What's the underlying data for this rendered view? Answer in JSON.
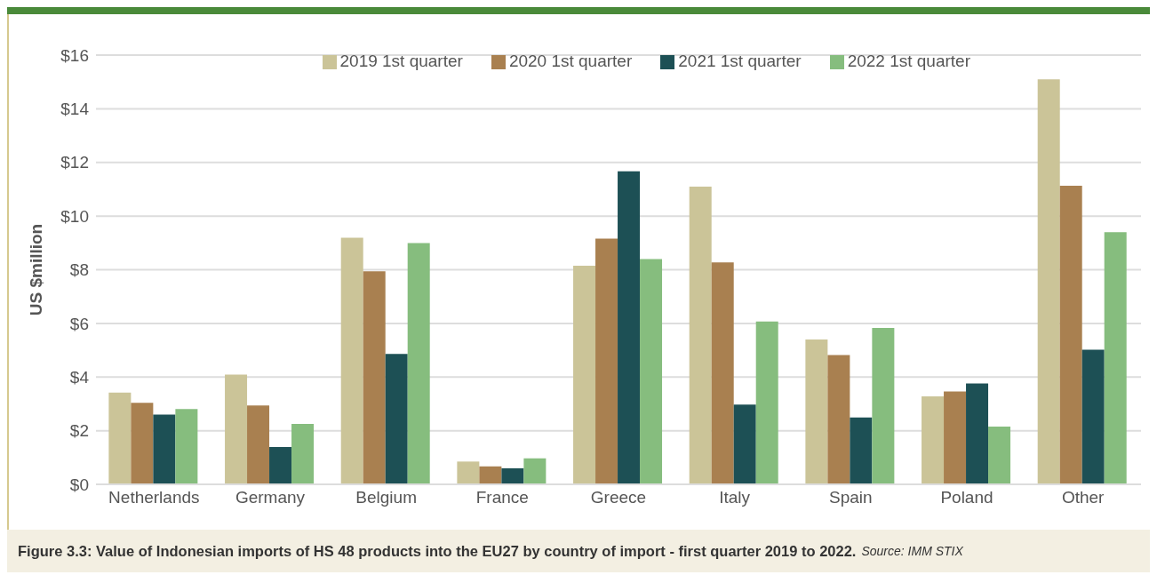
{
  "chart_data": {
    "type": "bar",
    "title": "Figure 3.3: Value of Indonesian imports of HS 48 products into the EU27 by country of import - first quarter 2019 to 2022.",
    "annotations": [
      "Source: IMM STIX"
    ],
    "ylabel": "US $million",
    "categories": [
      "Netherlands",
      "Germany",
      "Belgium",
      "France",
      "Greece",
      "Italy",
      "Spain",
      "Poland",
      "Other"
    ],
    "series": [
      {
        "name": "2019 1st quarter",
        "color": "#cbc498",
        "values": [
          3.42,
          4.09,
          9.19,
          0.85,
          8.15,
          11.1,
          5.4,
          3.28,
          15.1
        ]
      },
      {
        "name": "2020 1st quarter",
        "color": "#a98050",
        "values": [
          3.04,
          2.94,
          7.94,
          0.67,
          9.16,
          8.27,
          4.82,
          3.46,
          11.13
        ]
      },
      {
        "name": "2021 1st quarter",
        "color": "#1d5055",
        "values": [
          2.6,
          1.39,
          4.86,
          0.6,
          11.67,
          2.97,
          2.49,
          3.76,
          5.02
        ]
      },
      {
        "name": "2022 1st quarter",
        "color": "#86bd7e",
        "values": [
          2.81,
          2.25,
          8.99,
          0.97,
          8.4,
          6.07,
          5.83,
          2.15,
          9.4
        ]
      }
    ],
    "ylim": [
      0,
      16
    ],
    "yticks": [
      {
        "value": 0,
        "label": "$0"
      },
      {
        "value": 2,
        "label": "$2"
      },
      {
        "value": 4,
        "label": "$4"
      },
      {
        "value": 6,
        "label": "$6"
      },
      {
        "value": 8,
        "label": "$8"
      },
      {
        "value": 10,
        "label": "$10"
      },
      {
        "value": 12,
        "label": "$12"
      },
      {
        "value": 14,
        "label": "$14"
      },
      {
        "value": 16,
        "label": "$16"
      }
    ],
    "grid": "y",
    "legend": "top right"
  }
}
